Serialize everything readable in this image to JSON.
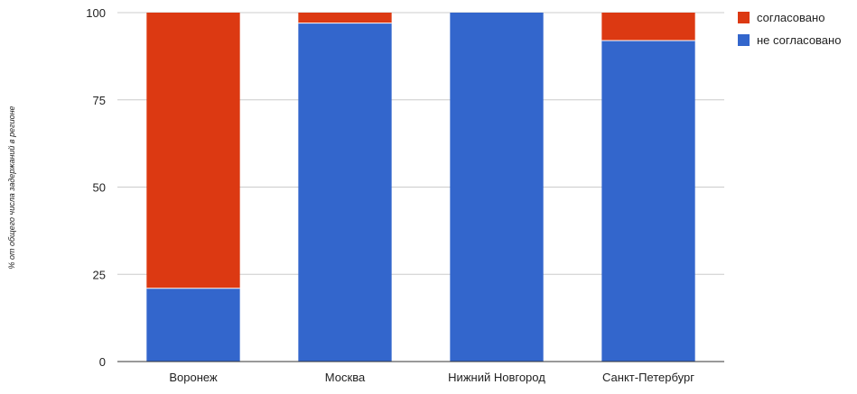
{
  "chart_data": {
    "type": "bar",
    "stacked": true,
    "percent_stacked": true,
    "categories": [
      "Воронеж",
      "Москва",
      "Нижний Новгород",
      "Санкт-Петербург"
    ],
    "series": [
      {
        "name": "не согласовано",
        "values": [
          21,
          97,
          100,
          92
        ],
        "color": "#3366cc"
      },
      {
        "name": "согласовано",
        "values": [
          79,
          3,
          0,
          8
        ],
        "color": "#dc3912"
      }
    ],
    "ylabel": "% от общего числа задержаний в регионе",
    "xlabel": "",
    "ylim": [
      0,
      100
    ],
    "yticks": [
      0,
      25,
      50,
      75,
      100
    ],
    "grid": true,
    "legend": {
      "position": "right",
      "entries": [
        {
          "label": "согласовано",
          "color": "#dc3912"
        },
        {
          "label": "не согласовано",
          "color": "#3366cc"
        }
      ]
    }
  }
}
